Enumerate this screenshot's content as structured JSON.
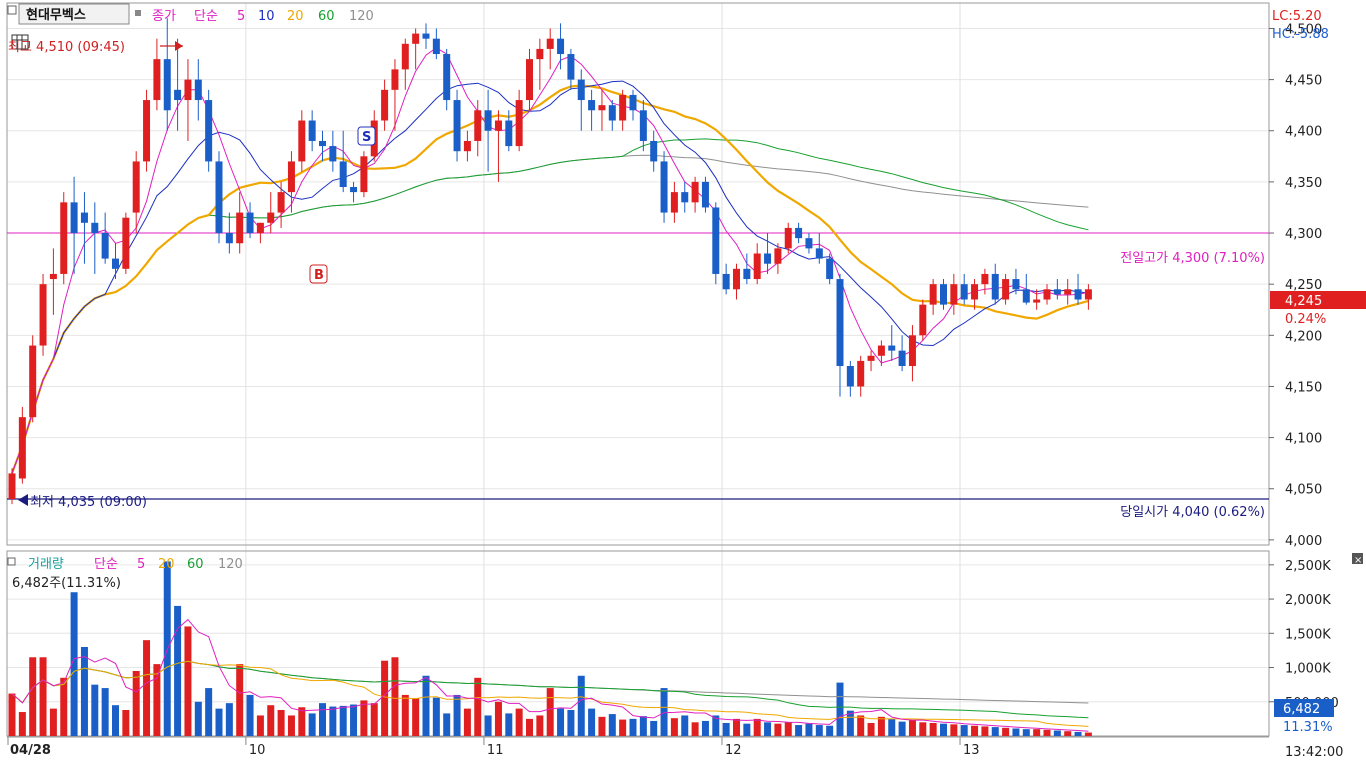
{
  "chart_data": [
    {
      "type": "candlestick",
      "stock_name": "현대무벡스",
      "price_header": {
        "label": "종가",
        "ma_label": "단순",
        "ma_periods": [
          "5",
          "10",
          "20",
          "60",
          "120"
        ],
        "ma_colors": [
          "#e020c0",
          "#1a2fc0",
          "#f0a800",
          "#18a030",
          "#909090"
        ]
      },
      "lc_label": "LC:5.20",
      "hc_label": "HC:-5.88",
      "high_marker": "최고 4,510 (09:45)",
      "low_marker": "최저 4,035 (09:00)",
      "prev_high_label": "전일고가 4,300 (7.10%)",
      "prev_high_value": 4300,
      "open_label": "당일시가 4,040 (0.62%)",
      "open_value": 4040,
      "current_price_label": "4,245",
      "current_change_label": "0.24%",
      "current_price": 4245,
      "signals": [
        "S",
        "B"
      ],
      "y_ticks": [
        "4,000",
        "4,050",
        "4,100",
        "4,150",
        "4,200",
        "4,250",
        "4,300",
        "4,350",
        "4,400",
        "4,450",
        "4,500"
      ],
      "ylim": [
        3995,
        4520
      ],
      "x_labels": [
        "04/28",
        "10",
        "11",
        "12",
        "13"
      ],
      "time_label": "13:42:00",
      "candles": [
        [
          4040,
          4070,
          4035,
          4065
        ],
        [
          4060,
          4130,
          4055,
          4120
        ],
        [
          4120,
          4200,
          4115,
          4190
        ],
        [
          4190,
          4260,
          4180,
          4250
        ],
        [
          4255,
          4285,
          4220,
          4260
        ],
        [
          4260,
          4340,
          4250,
          4330
        ],
        [
          4330,
          4355,
          4260,
          4300
        ],
        [
          4320,
          4340,
          4270,
          4310
        ],
        [
          4310,
          4330,
          4260,
          4300
        ],
        [
          4300,
          4320,
          4270,
          4275
        ],
        [
          4275,
          4290,
          4255,
          4265
        ],
        [
          4265,
          4320,
          4260,
          4315
        ],
        [
          4320,
          4380,
          4300,
          4370
        ],
        [
          4370,
          4440,
          4360,
          4430
        ],
        [
          4430,
          4490,
          4420,
          4470
        ],
        [
          4470,
          4510,
          4400,
          4420
        ],
        [
          4440,
          4490,
          4400,
          4430
        ],
        [
          4430,
          4470,
          4390,
          4450
        ],
        [
          4450,
          4470,
          4410,
          4430
        ],
        [
          4430,
          4440,
          4360,
          4370
        ],
        [
          4370,
          4380,
          4290,
          4300
        ],
        [
          4300,
          4320,
          4280,
          4290
        ],
        [
          4290,
          4340,
          4280,
          4320
        ],
        [
          4320,
          4330,
          4295,
          4300
        ],
        [
          4300,
          4310,
          4290,
          4310
        ],
        [
          4310,
          4340,
          4300,
          4320
        ],
        [
          4320,
          4350,
          4305,
          4340
        ],
        [
          4340,
          4380,
          4320,
          4370
        ],
        [
          4370,
          4420,
          4360,
          4410
        ],
        [
          4410,
          4420,
          4380,
          4390
        ],
        [
          4390,
          4400,
          4370,
          4385
        ],
        [
          4385,
          4400,
          4360,
          4370
        ],
        [
          4370,
          4400,
          4340,
          4345
        ],
        [
          4345,
          4350,
          4330,
          4340
        ],
        [
          4340,
          4380,
          4335,
          4375
        ],
        [
          4375,
          4420,
          4370,
          4410
        ],
        [
          4410,
          4450,
          4400,
          4440
        ],
        [
          4440,
          4470,
          4400,
          4460
        ],
        [
          4460,
          4490,
          4440,
          4485
        ],
        [
          4485,
          4500,
          4460,
          4495
        ],
        [
          4495,
          4505,
          4480,
          4490
        ],
        [
          4490,
          4500,
          4470,
          4475
        ],
        [
          4475,
          4480,
          4420,
          4430
        ],
        [
          4430,
          4440,
          4370,
          4380
        ],
        [
          4380,
          4400,
          4370,
          4390
        ],
        [
          4390,
          4430,
          4375,
          4420
        ],
        [
          4420,
          4440,
          4360,
          4400
        ],
        [
          4400,
          4420,
          4350,
          4410
        ],
        [
          4410,
          4420,
          4380,
          4385
        ],
        [
          4385,
          4440,
          4380,
          4430
        ],
        [
          4430,
          4480,
          4420,
          4470
        ],
        [
          4470,
          4490,
          4440,
          4480
        ],
        [
          4480,
          4500,
          4460,
          4490
        ],
        [
          4490,
          4505,
          4460,
          4475
        ],
        [
          4475,
          4480,
          4440,
          4450
        ],
        [
          4450,
          4460,
          4400,
          4430
        ],
        [
          4430,
          4440,
          4400,
          4420
        ],
        [
          4420,
          4440,
          4400,
          4425
        ],
        [
          4425,
          4430,
          4400,
          4410
        ],
        [
          4410,
          4440,
          4400,
          4435
        ],
        [
          4435,
          4440,
          4410,
          4420
        ],
        [
          4420,
          4430,
          4380,
          4390
        ],
        [
          4390,
          4400,
          4360,
          4370
        ],
        [
          4370,
          4380,
          4310,
          4320
        ],
        [
          4320,
          4350,
          4310,
          4340
        ],
        [
          4340,
          4350,
          4320,
          4330
        ],
        [
          4330,
          4355,
          4320,
          4350
        ],
        [
          4350,
          4355,
          4320,
          4325
        ],
        [
          4325,
          4330,
          4250,
          4260
        ],
        [
          4260,
          4270,
          4240,
          4245
        ],
        [
          4245,
          4270,
          4235,
          4265
        ],
        [
          4265,
          4280,
          4250,
          4255
        ],
        [
          4255,
          4290,
          4250,
          4280
        ],
        [
          4280,
          4300,
          4260,
          4270
        ],
        [
          4270,
          4290,
          4260,
          4285
        ],
        [
          4285,
          4310,
          4280,
          4305
        ],
        [
          4305,
          4310,
          4290,
          4295
        ],
        [
          4295,
          4300,
          4280,
          4285
        ],
        [
          4285,
          4300,
          4270,
          4275
        ],
        [
          4275,
          4280,
          4250,
          4255
        ],
        [
          4255,
          4260,
          4140,
          4170
        ],
        [
          4170,
          4175,
          4140,
          4150
        ],
        [
          4150,
          4180,
          4140,
          4175
        ],
        [
          4175,
          4185,
          4165,
          4180
        ],
        [
          4180,
          4195,
          4170,
          4190
        ],
        [
          4190,
          4210,
          4175,
          4185
        ],
        [
          4185,
          4200,
          4165,
          4170
        ],
        [
          4170,
          4210,
          4155,
          4200
        ],
        [
          4200,
          4235,
          4195,
          4230
        ],
        [
          4230,
          4255,
          4220,
          4250
        ],
        [
          4250,
          4255,
          4225,
          4230
        ],
        [
          4230,
          4260,
          4220,
          4250
        ],
        [
          4250,
          4260,
          4230,
          4235
        ],
        [
          4235,
          4255,
          4225,
          4250
        ],
        [
          4250,
          4265,
          4240,
          4260
        ],
        [
          4260,
          4270,
          4230,
          4235
        ],
        [
          4235,
          4260,
          4230,
          4255
        ],
        [
          4255,
          4265,
          4240,
          4245
        ],
        [
          4245,
          4260,
          4230,
          4232
        ],
        [
          4232,
          4245,
          4225,
          4235
        ],
        [
          4235,
          4250,
          4230,
          4245
        ],
        [
          4245,
          4255,
          4235,
          4240
        ],
        [
          4240,
          4255,
          4230,
          4245
        ],
        [
          4245,
          4260,
          4230,
          4235
        ],
        [
          4235,
          4250,
          4225,
          4245
        ]
      ]
    },
    {
      "type": "bar",
      "title": "거래량",
      "ma_label": "단순",
      "ma_periods": [
        "5",
        "20",
        "60",
        "120"
      ],
      "volume_header": "6,482주(11.31%)",
      "current_volume_label": "6,482",
      "current_volume_pct": "11.31%",
      "y_ticks": [
        "500,000",
        "1,000K",
        "1,500K",
        "2,000K",
        "2,500K"
      ],
      "ylim": [
        0,
        2600000
      ],
      "volumes": [
        620000,
        350000,
        1150000,
        1150000,
        400000,
        850000,
        2100000,
        1300000,
        750000,
        700000,
        450000,
        380000,
        950000,
        1400000,
        1050000,
        2550000,
        1900000,
        1600000,
        500000,
        700000,
        400000,
        480000,
        1050000,
        600000,
        300000,
        450000,
        380000,
        300000,
        420000,
        330000,
        480000,
        430000,
        440000,
        460000,
        520000,
        480000,
        1100000,
        1150000,
        600000,
        550000,
        880000,
        560000,
        330000,
        600000,
        400000,
        850000,
        300000,
        500000,
        330000,
        400000,
        250000,
        300000,
        700000,
        400000,
        380000,
        880000,
        400000,
        280000,
        320000,
        240000,
        250000,
        290000,
        220000,
        700000,
        260000,
        300000,
        200000,
        220000,
        300000,
        190000,
        250000,
        180000,
        250000,
        200000,
        180000,
        200000,
        160000,
        180000,
        160000,
        150000,
        780000,
        370000,
        300000,
        190000,
        280000,
        250000,
        210000,
        230000,
        200000,
        190000,
        180000,
        170000,
        160000,
        150000,
        140000,
        130000,
        120000,
        110000,
        100000,
        100000,
        90000,
        80000,
        70000,
        60000,
        50000
      ]
    }
  ]
}
